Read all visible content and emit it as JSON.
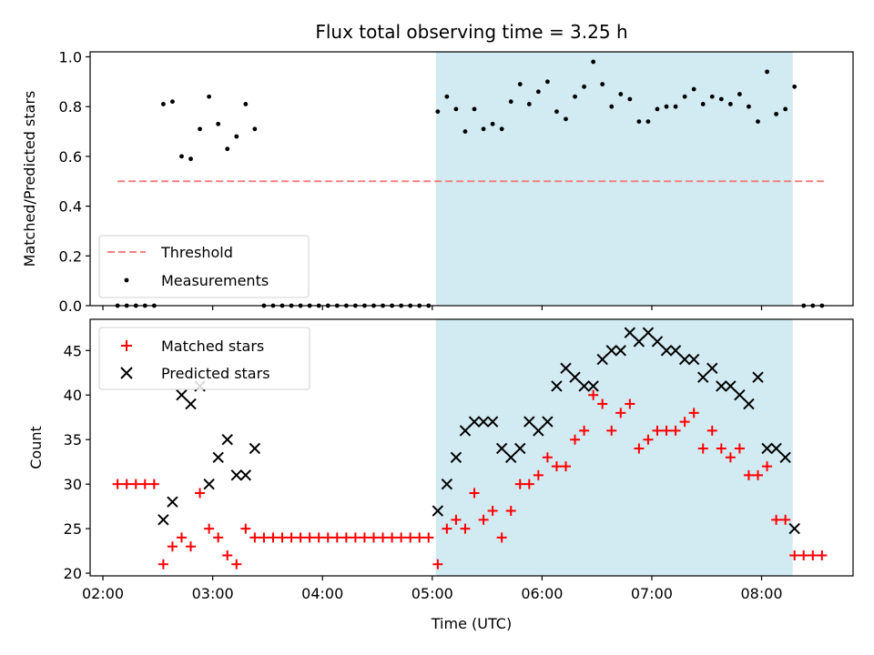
{
  "chart_data": [
    {
      "type": "scatter",
      "title": "Flux total observing time = 3.25 h",
      "ylabel": "Matched/Predicted stars",
      "ylim": [
        0,
        1.02
      ],
      "y_ticks": [
        "0.0",
        "0.2",
        "0.4",
        "0.6",
        "0.8",
        "1.0"
      ],
      "y_tick_values": [
        0,
        0.2,
        0.4,
        0.6,
        0.8,
        1.0
      ],
      "x_range_minutes": [
        113,
        530
      ],
      "x_tick_minutes": [
        120,
        180,
        240,
        300,
        360,
        420,
        480
      ],
      "threshold": {
        "name": "Threshold",
        "value": 0.5,
        "x_start": 128,
        "x_end": 514,
        "color": "#f08080"
      },
      "shade": {
        "x_start": 302,
        "x_end": 497,
        "color": "#add8e6"
      },
      "series": [
        {
          "name": "Measurements",
          "color": "#000000",
          "x": [
            128,
            133,
            138,
            143,
            148,
            153,
            158,
            163,
            168,
            173,
            178,
            183,
            188,
            193,
            198,
            203,
            208,
            213,
            218,
            223,
            228,
            233,
            238,
            243,
            248,
            253,
            258,
            263,
            268,
            273,
            278,
            283,
            288,
            293,
            298,
            303,
            308,
            313,
            318,
            323,
            328,
            333,
            338,
            343,
            348,
            353,
            358,
            363,
            368,
            373,
            378,
            383,
            388,
            393,
            398,
            403,
            408,
            413,
            418,
            423,
            428,
            433,
            438,
            443,
            448,
            453,
            458,
            463,
            468,
            473,
            478,
            483,
            488,
            493,
            498,
            503,
            508,
            513
          ],
          "y": [
            0,
            0,
            0,
            0,
            0,
            0.81,
            0.82,
            0.6,
            0.59,
            0.71,
            0.84,
            0.73,
            0.63,
            0.68,
            0.81,
            0.71,
            0,
            0,
            0,
            0,
            0,
            0,
            0,
            0,
            0,
            0,
            0,
            0,
            0,
            0,
            0,
            0,
            0,
            0,
            0,
            0.78,
            0.84,
            0.79,
            0.7,
            0.79,
            0.71,
            0.73,
            0.71,
            0.82,
            0.89,
            0.81,
            0.86,
            0.9,
            0.78,
            0.75,
            0.84,
            0.88,
            0.98,
            0.89,
            0.8,
            0.85,
            0.83,
            0.74,
            0.74,
            0.79,
            0.8,
            0.8,
            0.84,
            0.87,
            0.81,
            0.84,
            0.83,
            0.81,
            0.85,
            0.8,
            0.74,
            0.94,
            0.77,
            0.79,
            0.88,
            0,
            0,
            0
          ]
        }
      ],
      "legend": {
        "position": "lower-left",
        "entries": [
          "Threshold",
          "Measurements"
        ]
      }
    },
    {
      "type": "scatter",
      "xlabel": "Time (UTC)",
      "ylabel": "Count",
      "ylim": [
        19.7,
        48.5
      ],
      "y_ticks": [
        "20",
        "25",
        "30",
        "35",
        "40",
        "45"
      ],
      "y_tick_values": [
        20,
        25,
        30,
        35,
        40,
        45
      ],
      "x_range_minutes": [
        113,
        530
      ],
      "x_ticks": [
        "02:00",
        "03:00",
        "04:00",
        "05:00",
        "06:00",
        "07:00",
        "08:00"
      ],
      "x_tick_minutes": [
        120,
        180,
        240,
        300,
        360,
        420,
        480
      ],
      "shade": {
        "x_start": 302,
        "x_end": 497,
        "color": "#add8e6"
      },
      "series": [
        {
          "name": "Matched stars",
          "color": "#ff0000",
          "marker": "+",
          "x": [
            128,
            133,
            138,
            143,
            148,
            153,
            158,
            163,
            168,
            173,
            178,
            183,
            188,
            193,
            198,
            203,
            208,
            213,
            218,
            223,
            228,
            233,
            238,
            243,
            248,
            253,
            258,
            263,
            268,
            273,
            278,
            283,
            288,
            293,
            298,
            303,
            308,
            313,
            318,
            323,
            328,
            333,
            338,
            343,
            348,
            353,
            358,
            363,
            368,
            373,
            378,
            383,
            388,
            393,
            398,
            403,
            408,
            413,
            418,
            423,
            428,
            433,
            438,
            443,
            448,
            453,
            458,
            463,
            468,
            473,
            478,
            483,
            488,
            493,
            498,
            503,
            508,
            513
          ],
          "y": [
            30,
            30,
            30,
            30,
            30,
            21,
            23,
            24,
            23,
            29,
            25,
            24,
            22,
            21,
            25,
            24,
            24,
            24,
            24,
            24,
            24,
            24,
            24,
            24,
            24,
            24,
            24,
            24,
            24,
            24,
            24,
            24,
            24,
            24,
            24,
            21,
            25,
            26,
            25,
            29,
            26,
            27,
            24,
            27,
            30,
            30,
            31,
            33,
            32,
            32,
            35,
            36,
            40,
            39,
            36,
            38,
            39,
            34,
            35,
            36,
            36,
            36,
            37,
            38,
            34,
            36,
            34,
            33,
            34,
            31,
            31,
            32,
            26,
            26,
            22,
            22,
            22,
            22
          ]
        },
        {
          "name": "Predicted stars",
          "color": "#000000",
          "marker": "x",
          "x": [
            153,
            158,
            163,
            168,
            173,
            178,
            183,
            188,
            193,
            198,
            203,
            303,
            308,
            313,
            318,
            323,
            328,
            333,
            338,
            343,
            348,
            353,
            358,
            363,
            368,
            373,
            378,
            383,
            388,
            393,
            398,
            403,
            408,
            413,
            418,
            423,
            428,
            433,
            438,
            443,
            448,
            453,
            458,
            463,
            468,
            473,
            478,
            483,
            488,
            493,
            498
          ],
          "y": [
            26,
            28,
            40,
            39,
            41,
            30,
            33,
            35,
            31,
            31,
            34,
            27,
            30,
            33,
            36,
            37,
            37,
            37,
            34,
            33,
            34,
            37,
            36,
            37,
            41,
            43,
            42,
            41,
            41,
            44,
            45,
            45,
            47,
            46,
            47,
            46,
            45,
            45,
            44,
            44,
            42,
            43,
            41,
            41,
            40,
            39,
            42,
            34,
            34,
            33,
            25
          ]
        }
      ],
      "legend": {
        "position": "upper-left",
        "entries": [
          "Matched stars",
          "Predicted stars"
        ]
      }
    }
  ]
}
